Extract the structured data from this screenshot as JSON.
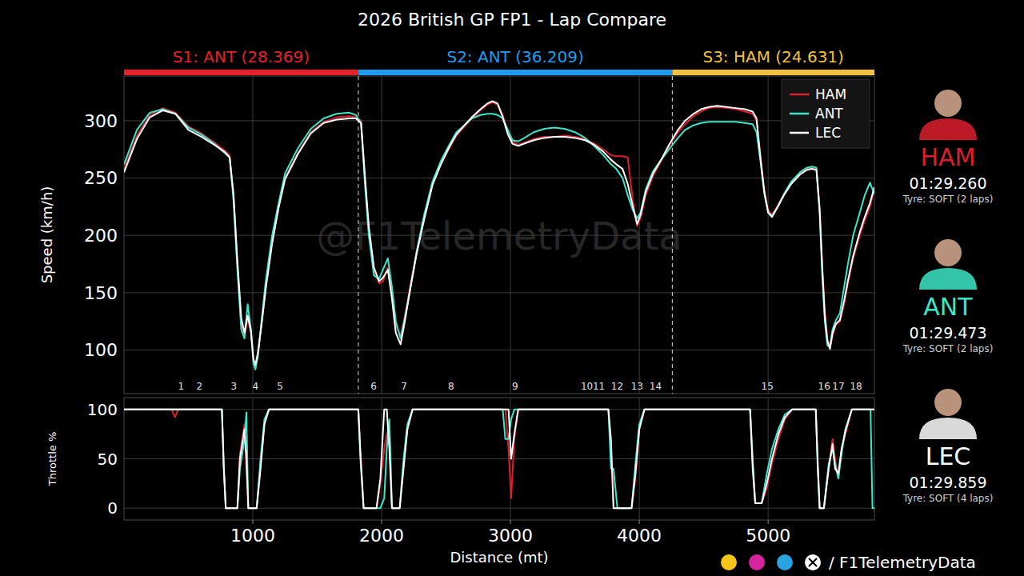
{
  "chart_data": [
    {
      "type": "line",
      "title": "2026 British GP FP1 - Lap Compare",
      "y_label": "Speed (km/h)",
      "xlim": [
        0,
        5825
      ],
      "xticks": [
        1000,
        2000,
        3000,
        4000,
        5000
      ],
      "ylim": [
        62,
        339
      ],
      "yticks": [
        100,
        150,
        200,
        250,
        300
      ],
      "grid": true,
      "tick_labels": "y",
      "legend": "top-right",
      "watermark": "@F1TelemetryData",
      "footer": "/ F1TelemetryData",
      "sectors": [
        {
          "label": "S1: ANT (28.369)",
          "color": "#e8202a",
          "start": 0,
          "end": 1819
        },
        {
          "label": "S2: ANT (36.209)",
          "color": "#1e9bf0",
          "start": 1819,
          "end": 4256
        },
        {
          "label": "S3: HAM (24.631)",
          "color": "#f0c040",
          "start": 4256,
          "end": 5825
        }
      ],
      "corners": [
        {
          "label": "1",
          "x": 443
        },
        {
          "label": "2",
          "x": 585
        },
        {
          "label": "3",
          "x": 852
        },
        {
          "label": "4",
          "x": 1020
        },
        {
          "label": "5",
          "x": 1212
        },
        {
          "label": "6",
          "x": 1938
        },
        {
          "label": "7",
          "x": 2174
        },
        {
          "label": "8",
          "x": 2539
        },
        {
          "label": "9",
          "x": 3035
        },
        {
          "label": "10",
          "x": 3593
        },
        {
          "label": "11",
          "x": 3686
        },
        {
          "label": "12",
          "x": 3828
        },
        {
          "label": "13",
          "x": 3983
        },
        {
          "label": "14",
          "x": 4126
        },
        {
          "label": "15",
          "x": 4994
        },
        {
          "label": "16",
          "x": 5435
        },
        {
          "label": "17",
          "x": 5545
        },
        {
          "label": "18",
          "x": 5683
        }
      ],
      "x": [
        0,
        100,
        200,
        300,
        400,
        500,
        600,
        700,
        780,
        820,
        850,
        880,
        910,
        935,
        960,
        985,
        1005,
        1020,
        1040,
        1070,
        1100,
        1150,
        1200,
        1250,
        1350,
        1450,
        1550,
        1650,
        1750,
        1800,
        1840,
        1870,
        1900,
        1940,
        1980,
        2010,
        2048,
        2080,
        2110,
        2147,
        2180,
        2220,
        2270,
        2330,
        2395,
        2460,
        2520,
        2580,
        2643,
        2700,
        2767,
        2820,
        2860,
        2900,
        2940,
        2980,
        3015,
        3060,
        3108,
        3180,
        3263,
        3340,
        3420,
        3500,
        3580,
        3650,
        3720,
        3780,
        3821,
        3870,
        3910,
        3950,
        3983,
        4010,
        4050,
        4107,
        4170,
        4231,
        4300,
        4355,
        4420,
        4479,
        4540,
        4603,
        4680,
        4750,
        4820,
        4880,
        4910,
        4940,
        4970,
        5000,
        5030,
        5070,
        5123,
        5180,
        5247,
        5300,
        5340,
        5375,
        5400,
        5420,
        5440,
        5460,
        5480,
        5500,
        5526,
        5557,
        5590,
        5619,
        5660,
        5712,
        5750,
        5790,
        5825
      ],
      "series": [
        {
          "name": "HAM",
          "color": "#dc1e2d",
          "lap_time": "01:29.260",
          "tyre": "Tyre: SOFT (2 laps)",
          "values": [
            258,
            287,
            305,
            311,
            307,
            295,
            289,
            281,
            274,
            270,
            235,
            175,
            125,
            112,
            128,
            115,
            90,
            85,
            97,
            125,
            155,
            195,
            225,
            250,
            272,
            290,
            299,
            303,
            304,
            303,
            300,
            250,
            205,
            170,
            158,
            160,
            172,
            150,
            122,
            112,
            130,
            155,
            185,
            215,
            245,
            262,
            275,
            287,
            295,
            302,
            309,
            314,
            316,
            314,
            305,
            290,
            282,
            279,
            281,
            284,
            286,
            286,
            287,
            286,
            284,
            280,
            275,
            270,
            269,
            269,
            268,
            230,
            208,
            215,
            235,
            252,
            265,
            278,
            290,
            297,
            304,
            308,
            311,
            312,
            311,
            310,
            308,
            306,
            300,
            270,
            240,
            222,
            218,
            225,
            236,
            246,
            254,
            258,
            259,
            258,
            225,
            175,
            135,
            110,
            102,
            112,
            122,
            125,
            140,
            158,
            180,
            200,
            213,
            225,
            240
          ]
        },
        {
          "name": "ANT",
          "color": "#3ce6c8",
          "lap_time": "01:29.473",
          "tyre": "Tyre: SOFT (2 laps)",
          "values": [
            262,
            292,
            307,
            310,
            306,
            294,
            288,
            280,
            272,
            268,
            230,
            170,
            118,
            110,
            140,
            118,
            88,
            83,
            95,
            128,
            160,
            200,
            228,
            254,
            276,
            293,
            302,
            306,
            307,
            305,
            298,
            245,
            200,
            165,
            162,
            170,
            180,
            155,
            125,
            110,
            128,
            152,
            185,
            218,
            247,
            265,
            278,
            290,
            296,
            302,
            305,
            306,
            306,
            305,
            302,
            292,
            283,
            282,
            285,
            290,
            293,
            294,
            293,
            290,
            285,
            278,
            270,
            262,
            258,
            250,
            235,
            222,
            215,
            220,
            240,
            256,
            266,
            275,
            285,
            292,
            296,
            298,
            299,
            299,
            299,
            299,
            298,
            297,
            290,
            265,
            237,
            220,
            217,
            224,
            236,
            247,
            255,
            259,
            260,
            259,
            220,
            165,
            125,
            104,
            103,
            118,
            126,
            132,
            155,
            175,
            200,
            220,
            235,
            246,
            236
          ]
        },
        {
          "name": "LEC",
          "color": "#ffffff",
          "lap_time": "01:29.859",
          "tyre": "Tyre: SOFT (4 laps)",
          "values": [
            255,
            284,
            303,
            309,
            306,
            292,
            286,
            279,
            273,
            268,
            236,
            178,
            128,
            115,
            130,
            117,
            92,
            87,
            98,
            124,
            153,
            193,
            224,
            249,
            271,
            289,
            298,
            301,
            302,
            302,
            298,
            252,
            208,
            172,
            160,
            163,
            170,
            145,
            115,
            105,
            125,
            152,
            183,
            214,
            244,
            262,
            276,
            288,
            296,
            303,
            310,
            315,
            317,
            315,
            303,
            288,
            280,
            278,
            280,
            283,
            285,
            286,
            286,
            285,
            283,
            279,
            273,
            266,
            262,
            258,
            245,
            225,
            210,
            218,
            238,
            254,
            266,
            279,
            292,
            300,
            306,
            310,
            312,
            313,
            312,
            311,
            310,
            308,
            302,
            268,
            238,
            220,
            216,
            224,
            235,
            245,
            253,
            257,
            258,
            257,
            222,
            172,
            130,
            108,
            101,
            115,
            123,
            126,
            143,
            160,
            182,
            203,
            216,
            228,
            242
          ]
        }
      ]
    },
    {
      "type": "line",
      "y_label": "Throttle %",
      "x_label": "Distance (mt)",
      "xlim": [
        0,
        5825
      ],
      "xticks": [
        1000,
        2000,
        3000,
        4000,
        5000
      ],
      "ylim": [
        -12,
        112
      ],
      "yticks": [
        0,
        50,
        100
      ],
      "grid": true,
      "tick_labels": true,
      "x": [
        0,
        370,
        395,
        420,
        760,
        775,
        790,
        880,
        900,
        935,
        950,
        965,
        1030,
        1060,
        1090,
        1125,
        1819,
        1835,
        1860,
        1960,
        1990,
        2020,
        2040,
        2060,
        2080,
        2140,
        2170,
        2200,
        2240,
        2940,
        2960,
        2985,
        3005,
        3030,
        3060,
        3760,
        3780,
        3800,
        3830,
        3890,
        3940,
        3970,
        4000,
        4040,
        4860,
        4880,
        4900,
        4950,
        4990,
        5030,
        5080,
        5130,
        5186,
        5370,
        5385,
        5400,
        5433,
        5470,
        5500,
        5520,
        5545,
        5570,
        5600,
        5650,
        5795,
        5810,
        5825
      ],
      "series": [
        {
          "color": "#dc1e2d",
          "values": [
            100,
            100,
            92,
            100,
            100,
            40,
            0,
            0,
            55,
            85,
            40,
            0,
            0,
            45,
            85,
            100,
            100,
            60,
            0,
            0,
            25,
            60,
            75,
            85,
            0,
            0,
            45,
            80,
            100,
            100,
            100,
            60,
            10,
            70,
            100,
            100,
            60,
            0,
            0,
            0,
            0,
            30,
            80,
            100,
            100,
            50,
            5,
            5,
            20,
            45,
            70,
            90,
            100,
            100,
            50,
            0,
            0,
            40,
            70,
            50,
            30,
            60,
            75,
            100,
            100,
            100,
            100
          ]
        },
        {
          "color": "#3ce6c8",
          "values": [
            100,
            100,
            100,
            100,
            100,
            40,
            0,
            0,
            40,
            70,
            97,
            0,
            0,
            50,
            90,
            100,
            100,
            50,
            0,
            0,
            0,
            10,
            60,
            90,
            0,
            0,
            50,
            85,
            100,
            100,
            70,
            70,
            90,
            100,
            100,
            100,
            40,
            40,
            0,
            0,
            0,
            45,
            85,
            100,
            100,
            50,
            5,
            5,
            35,
            60,
            80,
            95,
            100,
            100,
            40,
            0,
            0,
            45,
            60,
            45,
            30,
            55,
            80,
            100,
            100,
            0,
            0
          ]
        },
        {
          "color": "#ffffff",
          "values": [
            100,
            100,
            100,
            100,
            100,
            40,
            0,
            0,
            50,
            80,
            50,
            0,
            0,
            40,
            85,
            100,
            100,
            55,
            0,
            0,
            30,
            100,
            100,
            60,
            0,
            0,
            40,
            80,
            100,
            100,
            100,
            100,
            50,
            75,
            100,
            100,
            70,
            0,
            0,
            0,
            0,
            35,
            80,
            100,
            100,
            40,
            5,
            5,
            25,
            50,
            75,
            92,
            100,
            100,
            45,
            0,
            0,
            40,
            65,
            40,
            35,
            60,
            78,
            100,
            100,
            100,
            100
          ]
        }
      ]
    }
  ]
}
